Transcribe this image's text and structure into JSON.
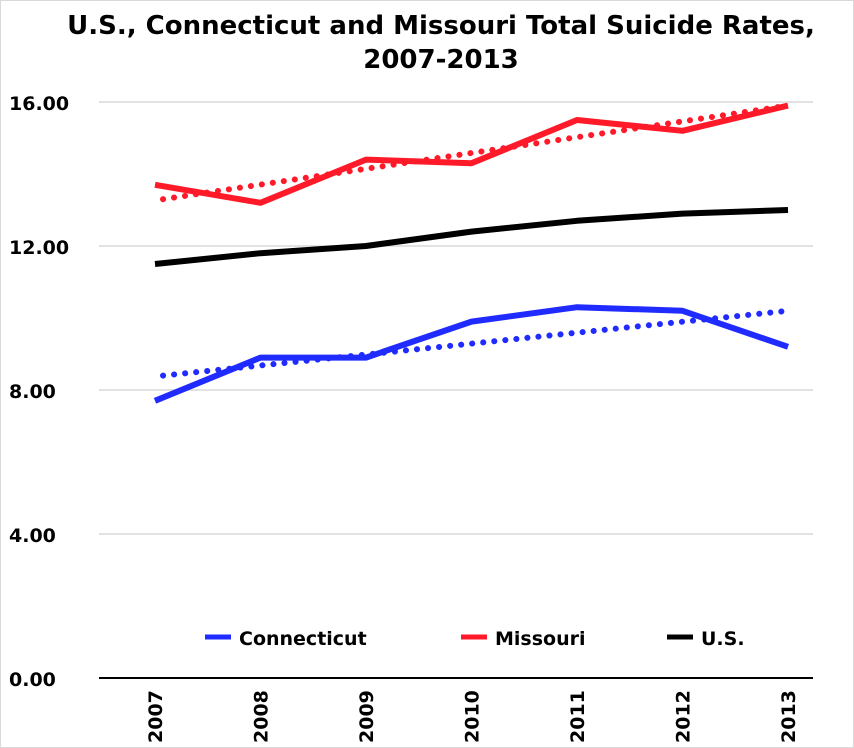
{
  "chart_data": {
    "type": "line",
    "title_line1": "U.S., Connecticut and Missouri Total Suicide Rates,",
    "title_line2": "2007-2013",
    "categories": [
      "2007",
      "2008",
      "2009",
      "2010",
      "2011",
      "2012",
      "2013"
    ],
    "y_ticks": [
      "0.00",
      "4.00",
      "8.00",
      "12.00",
      "16.00"
    ],
    "ylim": [
      0,
      16
    ],
    "grid": true,
    "legend_position": "bottom",
    "series": [
      {
        "name": "Connecticut",
        "color": "#1f2bff",
        "values": [
          7.7,
          8.9,
          8.9,
          9.9,
          10.3,
          10.2,
          9.2
        ],
        "trendline": {
          "style": "dotted",
          "start": 8.4,
          "end": 10.2
        }
      },
      {
        "name": "Missouri",
        "color": "#ff1a2a",
        "values": [
          13.7,
          13.2,
          14.4,
          14.3,
          15.5,
          15.2,
          15.9
        ],
        "trendline": {
          "style": "dotted",
          "start": 13.3,
          "end": 15.9
        }
      },
      {
        "name": "U.S.",
        "color": "#000000",
        "values": [
          11.5,
          11.8,
          12.0,
          12.4,
          12.7,
          12.9,
          13.0
        ]
      }
    ]
  }
}
